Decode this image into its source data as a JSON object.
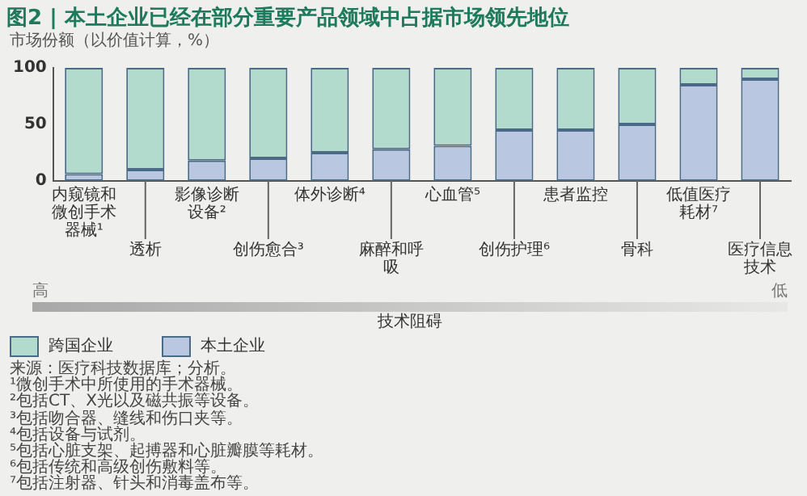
{
  "chart_data": {
    "type": "bar",
    "stacked": true,
    "title": "图2 | 本土企业已经在部分重要产品领域中占据市场领先地位",
    "ylabel": "市场份额（以价值计算，%）",
    "categories": [
      "内窥镜和微创手术器械¹",
      "透析",
      "影像诊断设备²",
      "创伤愈合³",
      "体外诊断⁴",
      "麻醉和呼吸",
      "心血管⁵",
      "创伤护理⁶",
      "患者监控",
      "骨科",
      "低值医疗耗材⁷",
      "医疗信息技术"
    ],
    "series": [
      {
        "name": "本土企业",
        "color": "#b9c7e0",
        "values": [
          6,
          10,
          18,
          20,
          25,
          28,
          31,
          45,
          45,
          50,
          85,
          90
        ]
      },
      {
        "name": "跨国企业",
        "color": "#b3dbcd",
        "values": [
          94,
          90,
          82,
          80,
          75,
          72,
          69,
          55,
          55,
          50,
          15,
          10
        ]
      }
    ],
    "ylim": [
      0,
      100
    ],
    "yticks": [
      0,
      50,
      100
    ],
    "grid": false,
    "legend": "bottom",
    "annotations": [
      "高",
      "低",
      "技术阻碍",
      "来源：医疗科技数据库；分析。",
      "¹微创手术中所使用的手术器械。",
      "²包括CT、X光以及磁共振等设备。",
      "³包括吻合器、缝线和伤口夹等。",
      "⁴包括设备与试剂。",
      "⁵包括心脏支架、起搏器和心脏瓣膜等耗材。",
      "⁶包括传统和高级创伤敷料等。",
      "⁷包括注射器、针头和消毒盖布等。"
    ]
  }
}
